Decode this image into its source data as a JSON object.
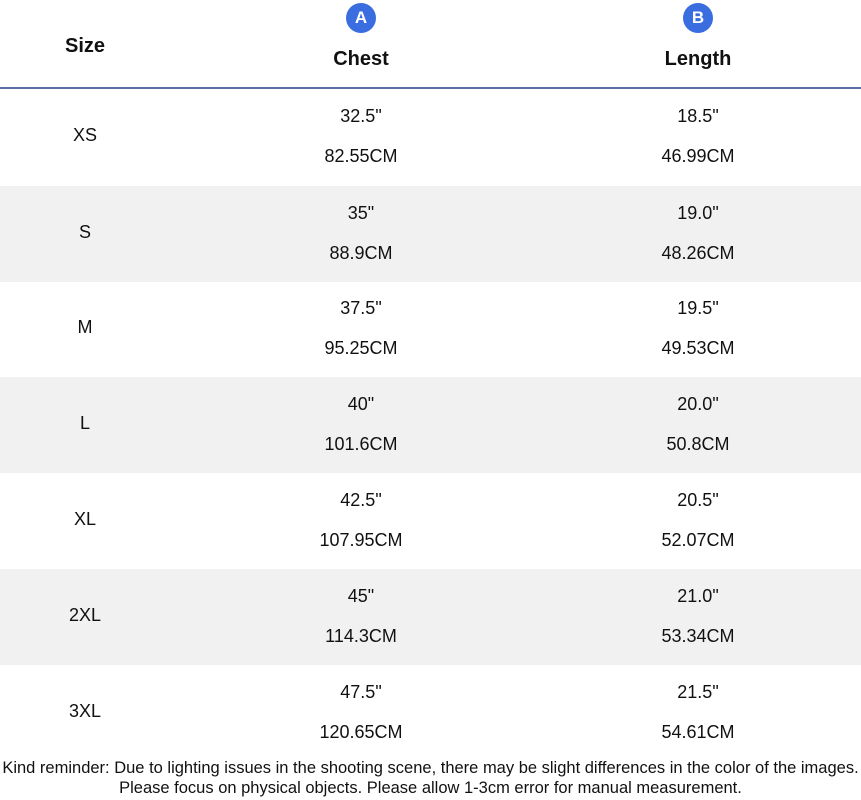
{
  "header": {
    "size_label": "Size",
    "columns": [
      {
        "badge": "A",
        "label": "Chest"
      },
      {
        "badge": "B",
        "label": "Length"
      }
    ],
    "badge_color": "#3a6de0",
    "divider_color": "#5b6ea6"
  },
  "rows": [
    {
      "size": "XS",
      "chest_in": "32.5\"",
      "chest_cm": "82.55CM",
      "length_in": "18.5\"",
      "length_cm": "46.99CM"
    },
    {
      "size": "S",
      "chest_in": "35\"",
      "chest_cm": "88.9CM",
      "length_in": "19.0\"",
      "length_cm": "48.26CM"
    },
    {
      "size": "M",
      "chest_in": "37.5\"",
      "chest_cm": "95.25CM",
      "length_in": "19.5\"",
      "length_cm": "49.53CM"
    },
    {
      "size": "L",
      "chest_in": "40\"",
      "chest_cm": "101.6CM",
      "length_in": "20.0\"",
      "length_cm": "50.8CM"
    },
    {
      "size": "XL",
      "chest_in": "42.5\"",
      "chest_cm": "107.95CM",
      "length_in": "20.5\"",
      "length_cm": "52.07CM"
    },
    {
      "size": "2XL",
      "chest_in": "45\"",
      "chest_cm": "114.3CM",
      "length_in": "21.0\"",
      "length_cm": "53.34CM"
    },
    {
      "size": "3XL",
      "chest_in": "47.5\"",
      "chest_cm": "120.65CM",
      "length_in": "21.5\"",
      "length_cm": "54.61CM"
    }
  ],
  "note": "Kind reminder: Due to lighting issues in the shooting scene, there may be slight differences in the color of the images. Please focus on physical objects. Please allow 1-3cm error for manual measurement."
}
